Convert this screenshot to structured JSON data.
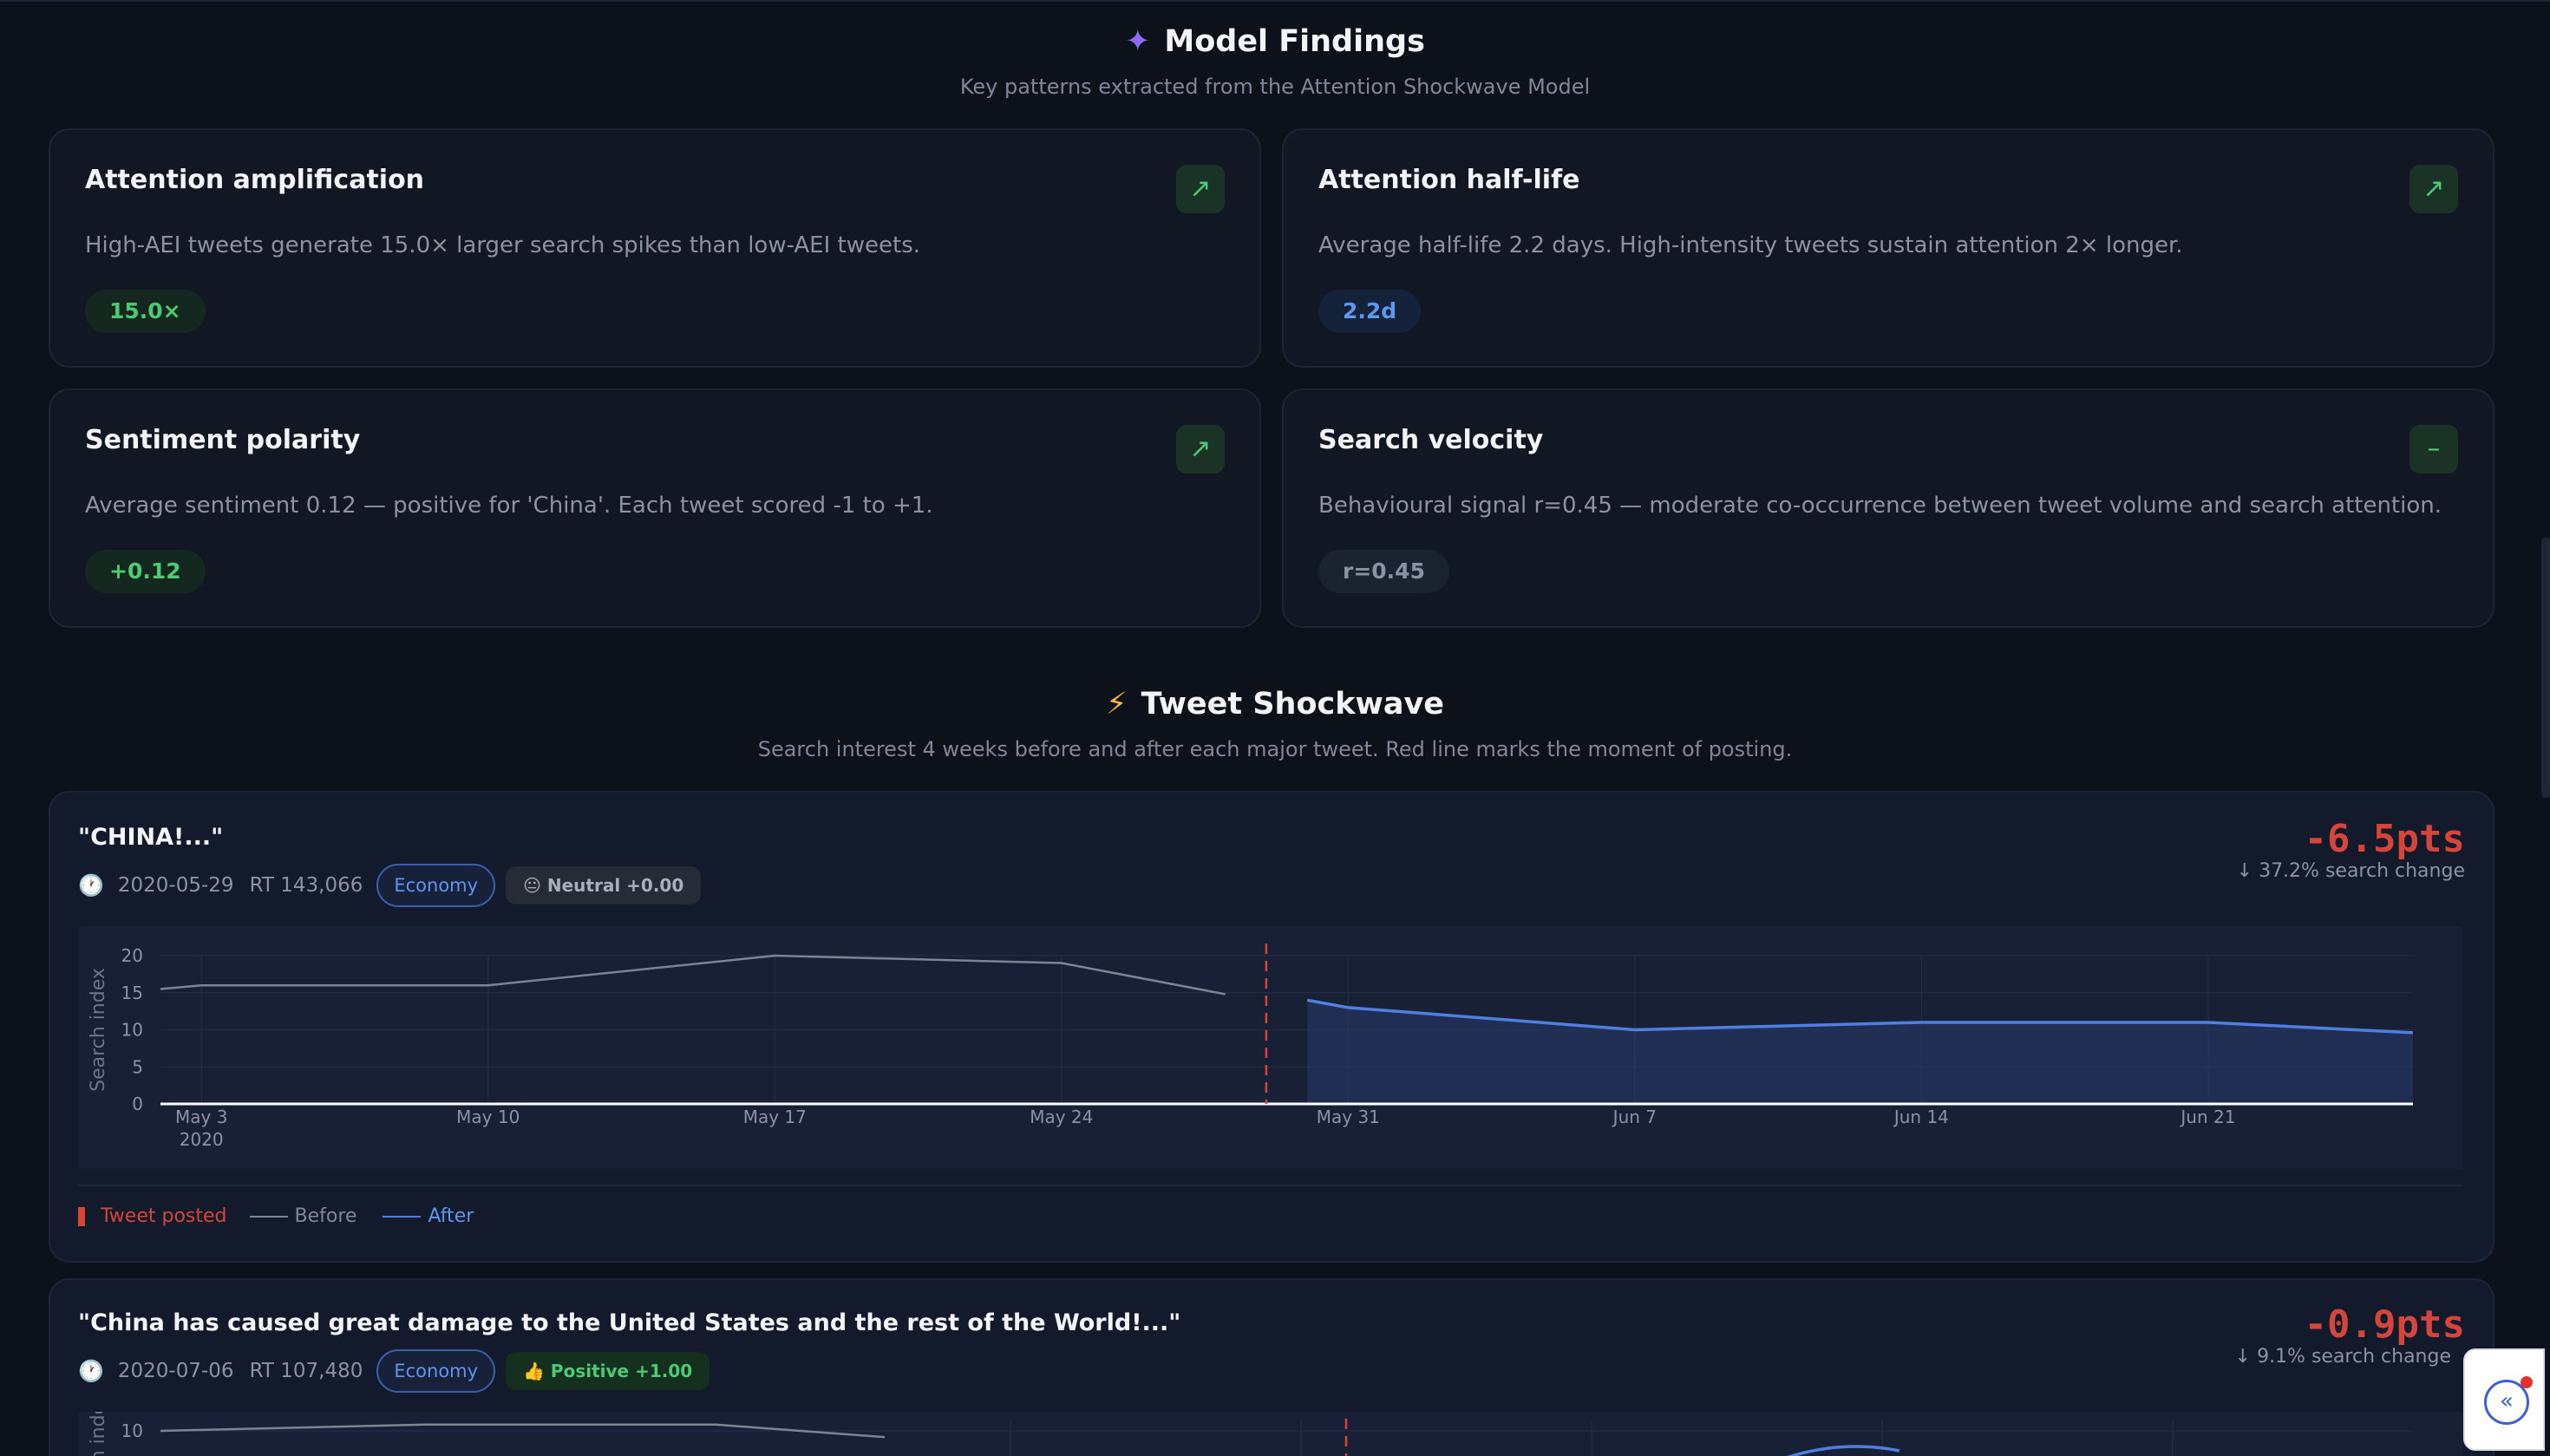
{
  "findings": {
    "title": "Model Findings",
    "subtitle": "Key patterns extracted from the Attention Shockwave Model",
    "cards": [
      {
        "title": "Attention amplification",
        "description": "High-AEI tweets generate 15.0× larger search spikes than low-AEI tweets.",
        "value": "15.0×",
        "trend": "↗"
      },
      {
        "title": "Attention half-life",
        "description": "Average half-life 2.2 days. High-intensity tweets sustain attention 2× longer.",
        "value": "2.2d",
        "trend": "↗"
      },
      {
        "title": "Sentiment polarity",
        "description": "Average sentiment 0.12 — positive for 'China'. Each tweet scored -1 to +1.",
        "value": "+0.12",
        "trend": "↗"
      },
      {
        "title": "Search velocity",
        "description": "Behavioural signal r=0.45 — moderate co-occurrence between tweet volume and search attention.",
        "value": "r=0.45",
        "trend": "–"
      }
    ]
  },
  "shockwave": {
    "title": "Tweet Shockwave",
    "subtitle": "Search interest 4 weeks before and after each major tweet. Red line marks the moment of posting.",
    "legend": {
      "posted": "Tweet posted",
      "before": "Before",
      "after": "After"
    },
    "tweets": [
      {
        "quote": "\"CHINA!...\"",
        "date": "2020-05-29",
        "retweets": "RT 143,066",
        "category": "Economy",
        "sentiment": "😐 Neutral +0.00",
        "change_pts": "-6.5pts",
        "change_pct": "↓ 37.2% search change"
      },
      {
        "quote": "\"China has caused great damage to the United States and the rest of the World!...\"",
        "date": "2020-07-06",
        "retweets": "RT 107,480",
        "category": "Economy",
        "sentiment": "👍 Positive +1.00",
        "change_pts": "-0.9pts",
        "change_pct": "↓ 9.1% search change"
      }
    ]
  },
  "chart_data": [
    {
      "type": "area",
      "ylabel": "Search index",
      "ylim": [
        0,
        20
      ],
      "yticks": [
        0,
        5,
        10,
        15,
        20
      ],
      "xticks": [
        "May 3",
        "May 10",
        "May 17",
        "May 24",
        "May 31",
        "Jun 7",
        "Jun 14",
        "Jun 21"
      ],
      "x_year_label": "2020",
      "event": "2020-05-29",
      "series": [
        {
          "name": "Before",
          "x": [
            "2020-05-02",
            "2020-05-03",
            "2020-05-10",
            "2020-05-17",
            "2020-05-24",
            "2020-05-28"
          ],
          "values": [
            15.5,
            16,
            16,
            20,
            19,
            14.8
          ]
        },
        {
          "name": "After",
          "x": [
            "2020-05-30",
            "2020-05-31",
            "2020-06-07",
            "2020-06-14",
            "2020-06-21",
            "2020-06-26"
          ],
          "values": [
            14,
            13,
            10,
            11,
            11,
            9.6
          ]
        }
      ]
    },
    {
      "type": "area",
      "ylabel": "Search index",
      "yticks": [
        10
      ],
      "series": [
        {
          "name": "Before",
          "values": [
            10,
            10.6,
            10.6,
            9.4
          ]
        }
      ]
    }
  ],
  "ui": {
    "sparkle_icon": "✦",
    "bolt_icon": "⚡",
    "clock_icon": "🕐",
    "expand_icon": "«",
    "colors": {
      "accent_red": "#d6453a",
      "before_line": "#7d8494",
      "after_line": "#4f7fe0",
      "positive": "#4ccb74"
    }
  }
}
